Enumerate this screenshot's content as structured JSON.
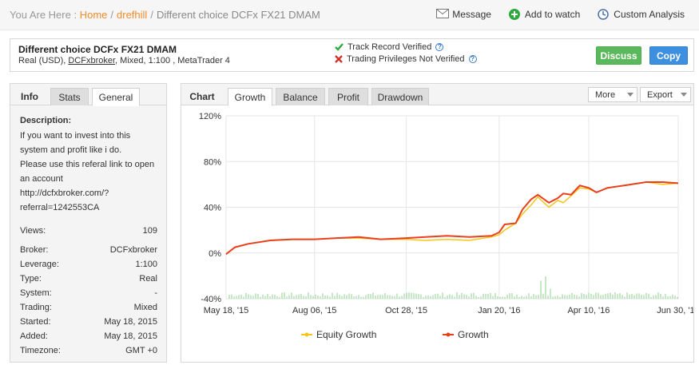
{
  "breadcrumb": {
    "prefix": "You Are Here :",
    "home": "Home",
    "user": "drefhill",
    "current": "Different choice DCFx FX21 DMAM",
    "sep": "/"
  },
  "top_actions": {
    "message": "Message",
    "add_to_watch": "Add to watch",
    "custom_analysis": "Custom Analysis"
  },
  "system": {
    "title": "Different choice DCFx FX21 DMAM",
    "currency": "Real (USD),",
    "broker_link": "DCFxbroker",
    "details": ", Mixed, 1:100 , MetaTrader 4",
    "track_record": "Track Record Verified",
    "trading_priv": "Trading Privileges Not Verified",
    "qmark": "?",
    "discuss_label": "Discuss",
    "copy_label": "Copy"
  },
  "info_tabs": {
    "info": "Info",
    "stats": "Stats",
    "general": "General"
  },
  "description": {
    "heading": "Description:",
    "lines": [
      "If you want to invest into this",
      "system and profit like i do.",
      "Please use this referal link to open",
      "an account",
      "http://dcfxbroker.com/?",
      "referral=1242553CA"
    ]
  },
  "stats": [
    {
      "label": "Views:",
      "value": "109"
    },
    {
      "label": "Broker:",
      "value": "DCFxbroker"
    },
    {
      "label": "Leverage:",
      "value": "1:100"
    },
    {
      "label": "Type:",
      "value": "Real"
    },
    {
      "label": "System:",
      "value": "-"
    },
    {
      "label": "Trading:",
      "value": "Mixed"
    },
    {
      "label": "Started:",
      "value": "May 18, 2015"
    },
    {
      "label": "Added:",
      "value": "May 18, 2015"
    },
    {
      "label": "Timezone:",
      "value": "GMT +0"
    }
  ],
  "chart_tabs": {
    "chart": "Chart",
    "growth": "Growth",
    "balance": "Balance",
    "profit": "Profit",
    "drawdown": "Drawdown",
    "more": "More",
    "export": "Export"
  },
  "colors": {
    "growth": "#e8401c",
    "equity": "#f5c518",
    "volume": "#8fd18f",
    "accent_orange": "#f08c2a",
    "discuss": "#5cb85c",
    "copy": "#3d8fe0"
  },
  "chart_data": {
    "type": "line",
    "title": "",
    "xlabel": "",
    "ylabel": "",
    "ylim": [
      -40,
      120
    ],
    "y_ticks": [
      "120%",
      "80%",
      "40%",
      "0%",
      "-40%"
    ],
    "y_tick_values": [
      120,
      80,
      40,
      0,
      -40
    ],
    "x_ticks": [
      "May 18, '15",
      "Aug 06, '15",
      "Oct 28, '15",
      "Jan 20, '16",
      "Apr 10, '16",
      "Jun 30, '16"
    ],
    "x_tick_positions": [
      0,
      80,
      163,
      247,
      328,
      409
    ],
    "x_max": 409,
    "grid": true,
    "legend": "bottom",
    "series": [
      {
        "name": "Growth",
        "x": [
          0,
          8,
          20,
          40,
          60,
          80,
          100,
          120,
          140,
          163,
          180,
          200,
          220,
          240,
          247,
          252,
          262,
          268,
          276,
          282,
          292,
          300,
          305,
          312,
          320,
          328,
          335,
          345,
          360,
          380,
          395,
          409
        ],
        "values": [
          -1,
          5,
          8,
          11,
          12,
          12,
          13,
          14,
          12,
          13,
          14,
          15,
          14,
          15,
          18,
          25,
          26,
          38,
          47,
          51,
          44,
          48,
          52,
          51,
          59,
          57,
          53,
          57,
          59,
          62,
          62,
          61
        ]
      },
      {
        "name": "Equity Growth",
        "x": [
          0,
          8,
          20,
          40,
          60,
          80,
          100,
          120,
          140,
          163,
          180,
          200,
          220,
          240,
          247,
          252,
          262,
          268,
          276,
          282,
          292,
          300,
          305,
          312,
          320,
          328,
          335,
          345,
          360,
          380,
          395,
          409
        ],
        "values": [
          -1,
          5,
          8,
          11,
          12,
          12,
          13,
          13,
          12,
          12,
          11,
          12,
          11,
          14,
          16,
          20,
          26,
          34,
          42,
          49,
          40,
          46,
          44,
          50,
          57,
          56,
          53,
          57,
          59,
          62,
          60,
          61
        ]
      }
    ]
  }
}
